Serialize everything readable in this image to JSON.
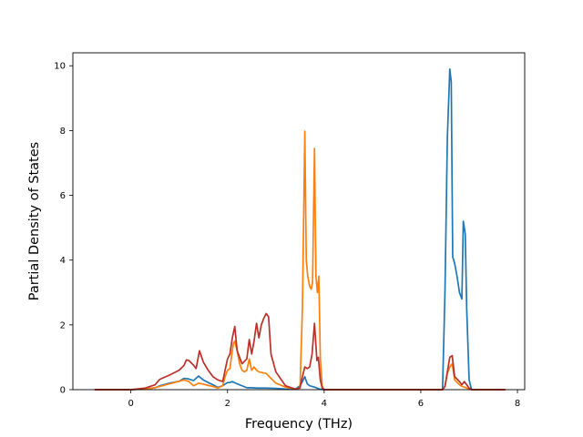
{
  "chart_data": {
    "type": "line",
    "title": "",
    "xlabel": "Frequency (THz)",
    "ylabel": "Partial Density of States",
    "xlim": [
      -1.2,
      8.15
    ],
    "ylim": [
      0,
      10.4
    ],
    "xticks": [
      0,
      2,
      4,
      6,
      8
    ],
    "yticks": [
      0,
      2,
      4,
      6,
      8,
      10
    ],
    "grid": false,
    "legend": "none",
    "series": [
      {
        "color": "#1f77b4",
        "x": [
          -0.75,
          0.0,
          0.3,
          0.5,
          0.6,
          0.8,
          1.0,
          1.1,
          1.2,
          1.3,
          1.35,
          1.4,
          1.5,
          1.6,
          1.7,
          1.8,
          1.9,
          2.0,
          2.05,
          2.1,
          2.2,
          2.3,
          2.4,
          2.5,
          2.6,
          2.8,
          3.0,
          3.2,
          3.4,
          3.5,
          3.55,
          3.6,
          3.65,
          3.7,
          3.8,
          3.85,
          3.9,
          4.0,
          5.0,
          6.0,
          6.45,
          6.5,
          6.55,
          6.6,
          6.63,
          6.66,
          6.7,
          6.75,
          6.8,
          6.85,
          6.88,
          6.92,
          6.95,
          7.0,
          7.05,
          7.2,
          7.5,
          7.75
        ],
        "y": [
          0,
          0,
          0.02,
          0.06,
          0.12,
          0.2,
          0.26,
          0.35,
          0.33,
          0.28,
          0.35,
          0.42,
          0.3,
          0.22,
          0.15,
          0.07,
          0.12,
          0.22,
          0.22,
          0.25,
          0.18,
          0.12,
          0.06,
          0.06,
          0.05,
          0.05,
          0.04,
          0.02,
          0.01,
          0.12,
          0.25,
          0.4,
          0.18,
          0.12,
          0.08,
          0.05,
          0.02,
          0,
          0,
          0,
          0,
          3.0,
          7.8,
          9.9,
          9.5,
          4.1,
          3.9,
          3.5,
          3.0,
          2.8,
          5.2,
          4.8,
          2.5,
          0.3,
          0,
          0,
          0,
          0
        ]
      },
      {
        "color": "#ff7f0e",
        "x": [
          -0.75,
          0.0,
          0.3,
          0.5,
          0.6,
          0.8,
          1.0,
          1.1,
          1.2,
          1.3,
          1.4,
          1.5,
          1.6,
          1.7,
          1.8,
          1.9,
          1.95,
          2.0,
          2.05,
          2.08,
          2.12,
          2.15,
          2.2,
          2.25,
          2.3,
          2.35,
          2.4,
          2.45,
          2.5,
          2.55,
          2.6,
          2.65,
          2.8,
          3.0,
          3.2,
          3.4,
          3.5,
          3.55,
          3.6,
          3.63,
          3.66,
          3.7,
          3.73,
          3.76,
          3.8,
          3.83,
          3.86,
          3.89,
          3.92,
          3.96,
          4.0,
          5.0,
          6.0,
          6.45,
          6.5,
          6.55,
          6.6,
          6.65,
          6.7,
          6.8,
          6.85,
          6.9,
          6.95,
          7.0,
          7.05,
          7.5,
          7.75
        ],
        "y": [
          0,
          0,
          0.02,
          0.06,
          0.1,
          0.18,
          0.26,
          0.3,
          0.25,
          0.12,
          0.2,
          0.17,
          0.13,
          0.1,
          0.05,
          0.12,
          0.4,
          0.6,
          0.65,
          1.0,
          1.4,
          1.5,
          1.2,
          0.8,
          0.6,
          0.55,
          0.6,
          0.95,
          0.6,
          0.7,
          0.6,
          0.55,
          0.5,
          0.2,
          0.08,
          0.02,
          0.05,
          2.5,
          7.98,
          4.0,
          3.5,
          3.2,
          3.1,
          3.3,
          7.45,
          3.5,
          3.0,
          3.5,
          1.0,
          0.1,
          0,
          0,
          0,
          0,
          0.1,
          0.5,
          0.7,
          0.8,
          0.3,
          0.15,
          0.1,
          0.08,
          0.05,
          0.02,
          0,
          0,
          0
        ]
      },
      {
        "color": "#b9312a",
        "x": [
          -0.75,
          0.0,
          0.3,
          0.5,
          0.6,
          0.8,
          1.0,
          1.1,
          1.15,
          1.2,
          1.3,
          1.35,
          1.42,
          1.5,
          1.6,
          1.7,
          1.8,
          1.9,
          2.0,
          2.05,
          2.1,
          2.15,
          2.2,
          2.3,
          2.4,
          2.45,
          2.5,
          2.55,
          2.6,
          2.65,
          2.7,
          2.75,
          2.8,
          2.85,
          2.9,
          3.0,
          3.2,
          3.4,
          3.5,
          3.55,
          3.6,
          3.65,
          3.7,
          3.75,
          3.8,
          3.85,
          3.88,
          3.92,
          3.96,
          4.0,
          5.0,
          6.0,
          6.45,
          6.5,
          6.55,
          6.6,
          6.65,
          6.7,
          6.8,
          6.85,
          6.9,
          6.95,
          7.0,
          7.05,
          7.5,
          7.75
        ],
        "y": [
          0,
          0,
          0.05,
          0.15,
          0.32,
          0.45,
          0.6,
          0.75,
          0.92,
          0.9,
          0.75,
          0.65,
          1.2,
          0.85,
          0.6,
          0.4,
          0.3,
          0.25,
          0.95,
          1.1,
          1.6,
          1.95,
          1.2,
          0.8,
          0.95,
          1.55,
          1.1,
          1.5,
          2.05,
          1.6,
          2.0,
          2.2,
          2.35,
          2.25,
          1.1,
          0.55,
          0.12,
          0.02,
          0.05,
          0.4,
          0.7,
          0.65,
          0.7,
          1.1,
          2.05,
          0.9,
          1.0,
          0.3,
          0.05,
          0,
          0,
          0,
          0,
          0.1,
          0.55,
          1.0,
          1.05,
          0.4,
          0.25,
          0.15,
          0.25,
          0.15,
          0.05,
          0,
          0,
          0
        ]
      }
    ]
  }
}
